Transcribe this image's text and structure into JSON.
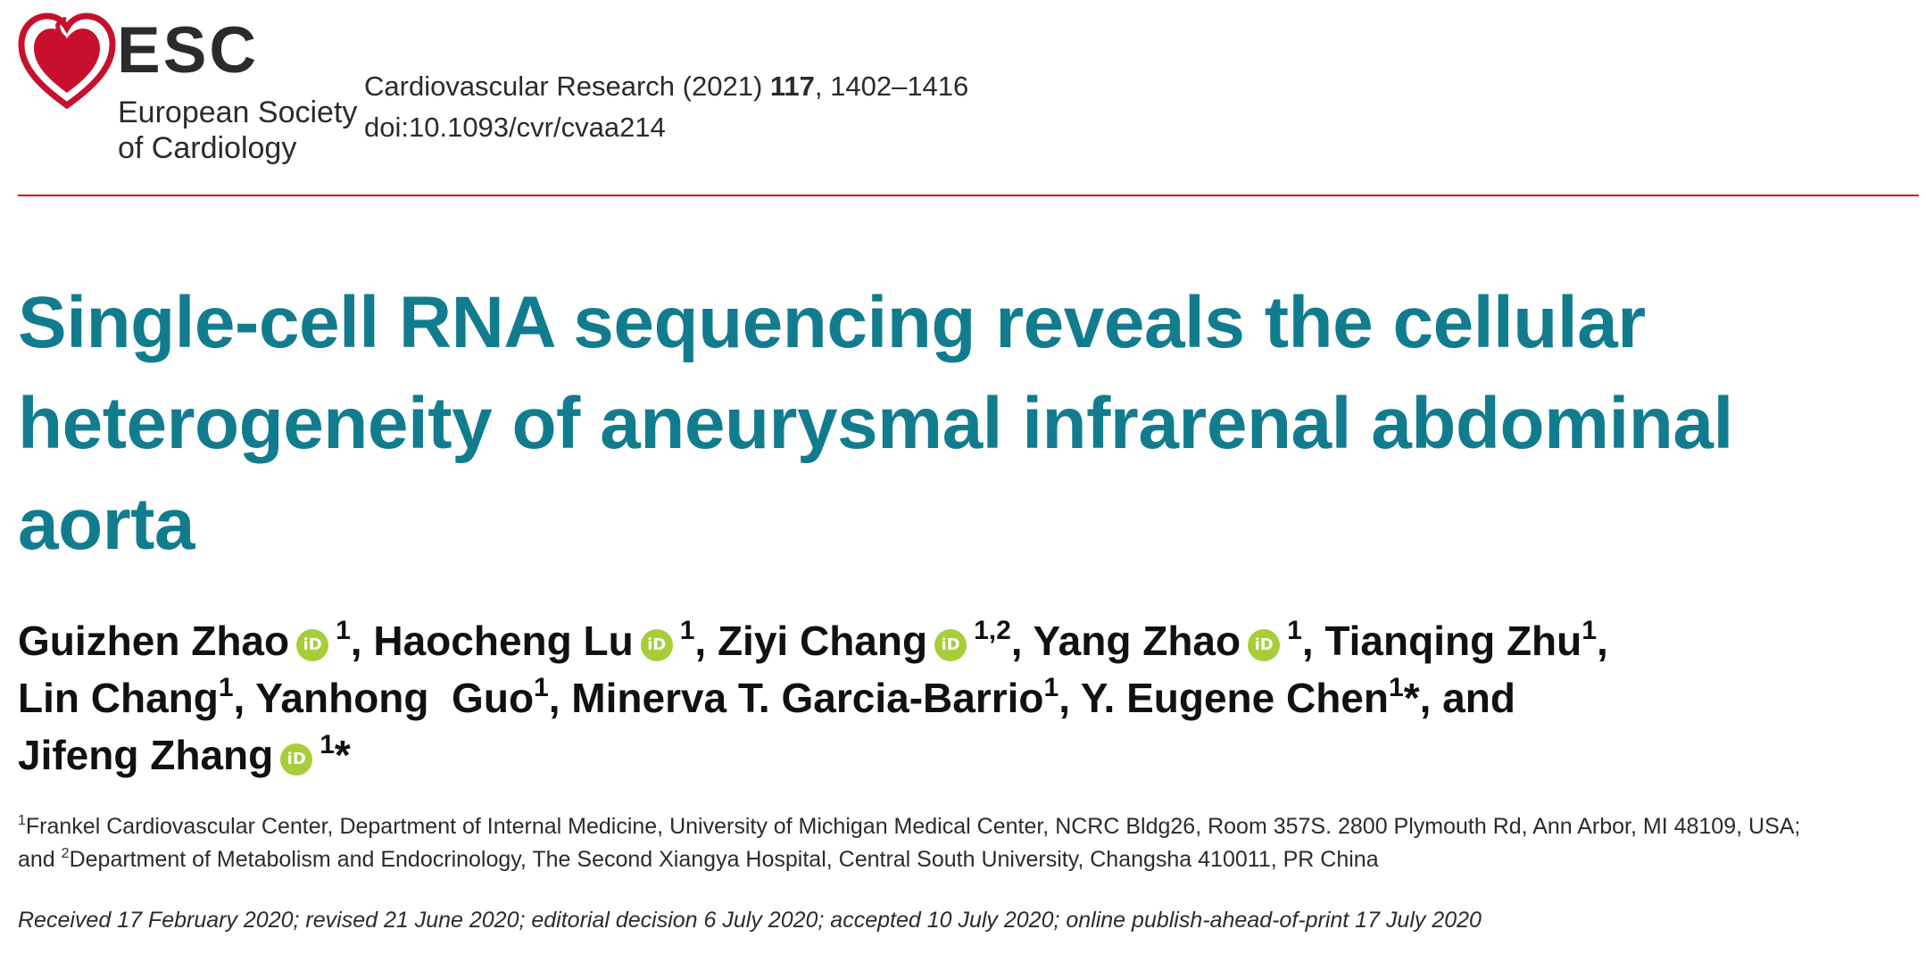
{
  "header": {
    "logo": {
      "acronym": "ESC",
      "name_line1": "European Society",
      "name_line2": "of Cardiology",
      "icon": "esc-heart-logo"
    },
    "journal": {
      "prefix": "Cardiovascular Research (2021) ",
      "volume": "117",
      "pages": ", 1402–1416",
      "doi": "doi:10.1093/cvr/cvaa214"
    }
  },
  "colors": {
    "title": "#127c8f",
    "rule": "#c8102e",
    "orcid": "#a6ce39"
  },
  "title": {
    "line1": "Single-cell RNA sequencing reveals the cellular",
    "line2": "heterogeneity of aneurysmal infrarenal abdominal",
    "line3": "aorta"
  },
  "authors": {
    "orcid_label": "iD",
    "list": [
      {
        "name": "Guizhen Zhao",
        "aff": "1",
        "sep": ",  "
      },
      {
        "name": "Haocheng Lu",
        "aff": "1",
        "sep": ",  "
      },
      {
        "name": "Ziyi Chang",
        "aff": "1,2",
        "sep": ",  "
      },
      {
        "name": "Yang Zhao",
        "aff": "1",
        "sep": ", "
      },
      {
        "name": "Tianqing Zhu",
        "aff": "1",
        "sep": ","
      },
      {
        "name": "Lin Chang",
        "aff": "1",
        "sep": ", "
      },
      {
        "name": "Yanhong  Guo",
        "aff": "1",
        "sep": ", "
      },
      {
        "name": "Minerva T. Garcia-Barrio",
        "aff": "1",
        "sep": ", "
      },
      {
        "name": "Y. Eugene Chen",
        "aff": "1",
        "mark": "*",
        "sep": ", and"
      },
      {
        "name": "Jifeng Zhang",
        "aff": "1",
        "mark": "*"
      }
    ]
  },
  "affiliations": {
    "a1_num": "1",
    "a1_text": "Frankel Cardiovascular Center, Department of Internal Medicine, University of Michigan Medical Center, NCRC Bldg26, Room 357S. 2800 Plymouth Rd, Ann Arbor, MI 48109, USA;",
    "joiner": "and ",
    "a2_num": "2",
    "a2_text": "Department of Metabolism and Endocrinology, The Second Xiangya Hospital, Central South University, Changsha 410011, PR China"
  },
  "dates": "Received 17 February 2020; revised 21 June 2020; editorial decision 6 July 2020; accepted 10 July 2020; online publish-ahead-of-print 17 July 2020"
}
